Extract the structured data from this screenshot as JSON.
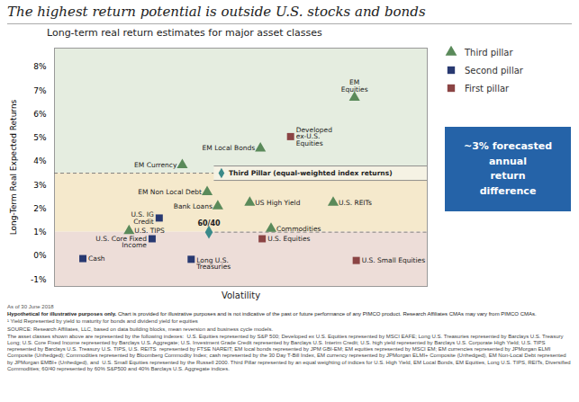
{
  "chart_data": {
    "type": "scatter",
    "title": "The highest return potential is outside U.S. stocks and bonds",
    "subtitle": "Long-term real return estimates for major asset classes",
    "xlabel": "Volatility",
    "ylabel": "Long-Term Real Expected Returns",
    "xlim": [
      0,
      10.5
    ],
    "ylim": [
      -1.3,
      8.8
    ],
    "yticks": [
      {
        "value": -1,
        "label": "-1%"
      },
      {
        "value": 0,
        "label": "0%"
      },
      {
        "value": 1,
        "label": "1%"
      },
      {
        "value": 2,
        "label": "2%"
      },
      {
        "value": 3,
        "label": "3%"
      },
      {
        "value": 4,
        "label": "4%"
      },
      {
        "value": 5,
        "label": "5%"
      },
      {
        "value": 6,
        "label": "6%"
      },
      {
        "value": 7,
        "label": "7%"
      },
      {
        "value": 8,
        "label": "8%"
      }
    ],
    "tick_labels": "y",
    "legend": "right",
    "series": [
      {
        "name": "Third pillar",
        "color": "#5a8a5a",
        "marker": "triangle",
        "x": [
          3.6,
          4.3,
          4.6,
          5.5,
          5.8,
          7.85,
          6.1,
          8.45,
          2.1
        ],
        "values": [
          3.85,
          2.7,
          2.1,
          2.25,
          4.55,
          2.25,
          1.15,
          6.7,
          1.05
        ],
        "labels": [
          "EM Currency",
          "EM Non Local Debt",
          "Bank Loans",
          "US High Yield",
          "EM Local Bonds",
          "U.S. REITs",
          "Commodities",
          "EM\nEquities",
          "U.S. TIPS"
        ]
      },
      {
        "name": "Second pillar",
        "color": "#283971",
        "marker": "square",
        "x": [
          0.8,
          2.95,
          2.75,
          3.85
        ],
        "values": [
          -0.12,
          1.6,
          0.72,
          -0.15
        ],
        "labels": [
          "Cash",
          "U.S. IG\nCredit",
          "U.S. Core Fixed\nIncome",
          "Long U.S.\nTreasuries"
        ]
      },
      {
        "name": "First pillar",
        "color": "#8b4444",
        "marker": "square",
        "x": [
          6.65,
          5.85,
          8.5
        ],
        "values": [
          5.05,
          0.72,
          -0.2
        ],
        "labels": [
          "Developed\nex-U.S.\nEquities",
          "U.S. Equities",
          "U.S. Small Equities"
        ]
      }
    ],
    "bands": [
      {
        "range": [
          3.5,
          8.8
        ],
        "color": "#e5ede0"
      },
      {
        "range": [
          1.0,
          3.5
        ],
        "color": "#f5e9cc"
      },
      {
        "range": [
          -1.3,
          1.0
        ],
        "color": "#edddd8"
      }
    ],
    "reference_lines": [
      {
        "y": 3.5,
        "line_style": "dashed"
      },
      {
        "y": 1.0,
        "line_style": "dashed"
      }
    ],
    "annotations": [
      {
        "text": "60/40",
        "x": 4.35,
        "y": 1.0,
        "marker": "diamond",
        "color": "#3a8a8a"
      },
      {
        "text": "Third Pillar (equal-weighted index returns)",
        "x": 4.5,
        "y": 3.5,
        "marker": "diamond",
        "color": "#3a8a8a",
        "style": "box"
      },
      {
        "text": "~3% forecasted\nannual\nreturn\ndifference",
        "color": "#2563a8"
      }
    ],
    "footnotes": [
      "As of 30 June 2018",
      {
        "bold": "Hypothetical for illustrative purposes only.",
        "text": " Chart is provided for illustrative purposes and is not indicative of the past or future performance of any PIMCO product. Research Affiliates CMAs may vary from PIMCO CMAs."
      },
      "¹ Yield Represented by yield to maturity for bonds and dividend yield for equities",
      "SOURCE: Research Affiliates, LLC, based on data building blocks, mean reversion and business cycle models.",
      "The asset classes shown above are represented by the following indexes:  U.S. Equities represented by S&P 500; Developed ex U.S. Equities represented by MSCI EAFE; Long U.S. Treasuries represented by Barclays U.S. Treasury Long; U.S. Core Fixed Income represented by Barclays U.S. Aggregate; U.S. Investment Grade Credit represented by Barclays U.S. Interim Credit; U.S. high yield represented by Barclays U.S. Corporate High Yield; U.S. TIPS represented by Barclays U.S. Treasury U.S. TIPS, U.S. REITS  represented by FTSE NAREIT; EM local bonds represented by JPM GBI-EM; EM equities represented by MSCI EM; EM currencies represented by JPMorgan ELMI Composite (Unhedged); Commodities represented by Bloomberg Commodity Index; cash represented by the 30 Day T-Bill Index, EM currency represented by JPMorgan ELMI+ Composite (Unhedged), EM Non-Local Debt represented by JPMorgan EMBI+ (Unhedged), and  U.S. Small Equities represented by the Russell 2000. Third Pillar represented by an equal weighting of indices for U.S. High Yield, EM Local Bonds, EM Equities, Long U.S. TIPS, REITs, Diversified Commodities; 60/40 represented by 60% S&P500 and 40% Barclays U.S. Aggregate indices."
    ]
  }
}
